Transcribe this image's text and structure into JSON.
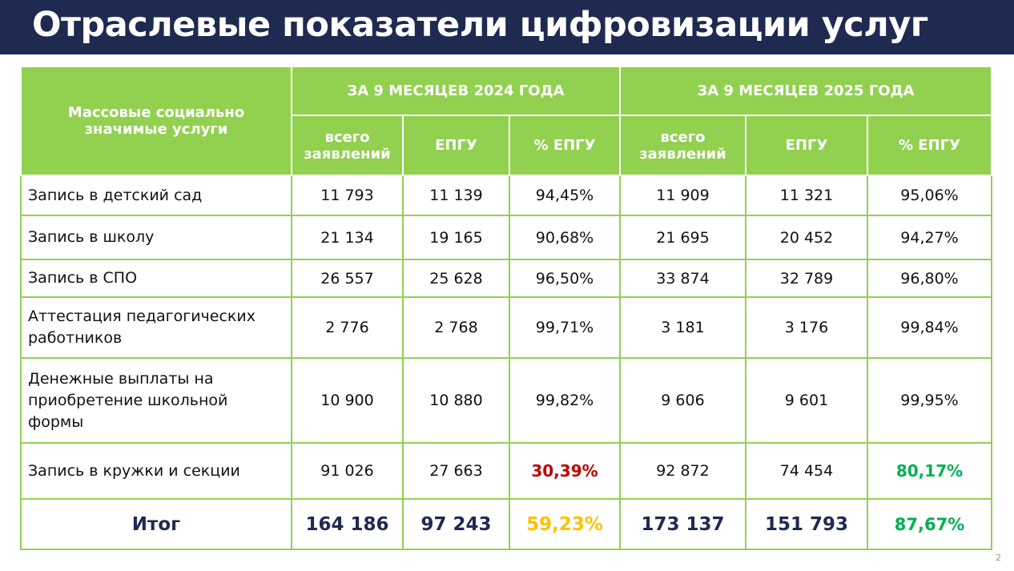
{
  "title": "Отраслевые показатели цифровизации услуг",
  "header": {
    "services": "Массовые социально значимые услуги",
    "period1": "ЗА 9 МЕСЯЦЕВ 2024 ГОДА",
    "period2": "ЗА 9 МЕСЯЦЕВ 2025 ГОДА",
    "total": "всего заявлений",
    "epgu": "ЕПГУ",
    "pct": "% ЕПГУ"
  },
  "colors": {
    "header_bg": "#92d050",
    "title_bg": "#1f2a50",
    "negative": "#c00000",
    "warning": "#ffc000",
    "positive": "#00b050"
  },
  "rows": [
    {
      "name": "Запись в детский сад",
      "v": [
        "11 793",
        "11 139",
        "94,45%",
        "11 909",
        "11 321",
        "95,06%"
      ]
    },
    {
      "name": "Запись в школу",
      "v": [
        "21 134",
        "19 165",
        "90,68%",
        "21 695",
        "20 452",
        "94,27%"
      ]
    },
    {
      "name": "Запись в СПО",
      "v": [
        "26 557",
        "25 628",
        "96,50%",
        "33 874",
        "32 789",
        "96,80%"
      ]
    },
    {
      "name": "Аттестация педагогических работников",
      "v": [
        "2 776",
        "2 768",
        "99,71%",
        "3 181",
        "3 176",
        "99,84%"
      ]
    },
    {
      "name": "Денежные выплаты на приобретение школьной формы",
      "v": [
        "10 900",
        "10 880",
        "99,82%",
        "9 606",
        "9 601",
        "99,95%"
      ]
    },
    {
      "name": "Запись в кружки и секции",
      "v": [
        "91 026",
        "27 663",
        "30,39%",
        "92 872",
        "74 454",
        "80,17%"
      ]
    }
  ],
  "total": {
    "name": "Итог",
    "v": [
      "164 186",
      "97 243",
      "59,23%",
      "173 137",
      "151 793",
      "87,67%"
    ]
  },
  "page_number": "2"
}
